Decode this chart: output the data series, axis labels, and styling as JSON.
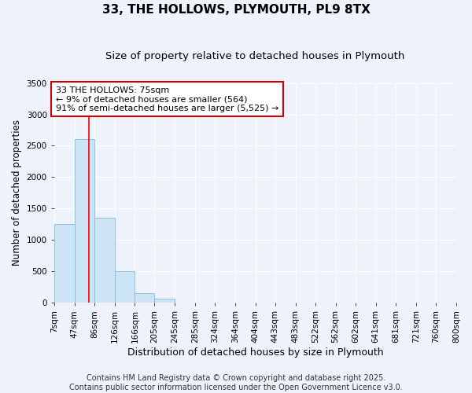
{
  "title": "33, THE HOLLOWS, PLYMOUTH, PL9 8TX",
  "subtitle": "Size of property relative to detached houses in Plymouth",
  "xlabel": "Distribution of detached houses by size in Plymouth",
  "ylabel": "Number of detached properties",
  "bar_labels": [
    "7sqm",
    "47sqm",
    "86sqm",
    "126sqm",
    "166sqm",
    "205sqm",
    "245sqm",
    "285sqm",
    "324sqm",
    "364sqm",
    "404sqm",
    "443sqm",
    "483sqm",
    "522sqm",
    "562sqm",
    "602sqm",
    "641sqm",
    "681sqm",
    "721sqm",
    "760sqm",
    "800sqm"
  ],
  "bar_edges": [
    7,
    47,
    86,
    126,
    166,
    205,
    245,
    285,
    324,
    364,
    404,
    443,
    483,
    522,
    562,
    602,
    641,
    681,
    721,
    760,
    800
  ],
  "bar_heights": [
    1250,
    2600,
    1350,
    500,
    150,
    60,
    5,
    0,
    0,
    0,
    0,
    0,
    0,
    0,
    0,
    0,
    0,
    0,
    0,
    0
  ],
  "bar_color": "#cce4f5",
  "bar_edgecolor": "#7abde0",
  "ylim": [
    0,
    3500
  ],
  "yticks": [
    0,
    500,
    1000,
    1500,
    2000,
    2500,
    3000,
    3500
  ],
  "red_line_x": 75,
  "annotation_text": "33 THE HOLLOWS: 75sqm\n← 9% of detached houses are smaller (564)\n91% of semi-detached houses are larger (5,525) →",
  "annotation_box_color": "#ffffff",
  "annotation_border_color": "#cc0000",
  "background_color": "#edf2fb",
  "grid_color": "#ffffff",
  "footer_text": "Contains HM Land Registry data © Crown copyright and database right 2025.\nContains public sector information licensed under the Open Government Licence v3.0.",
  "title_fontsize": 11,
  "subtitle_fontsize": 9.5,
  "xlabel_fontsize": 9,
  "ylabel_fontsize": 8.5,
  "tick_fontsize": 7.5,
  "annotation_fontsize": 8,
  "footer_fontsize": 7
}
